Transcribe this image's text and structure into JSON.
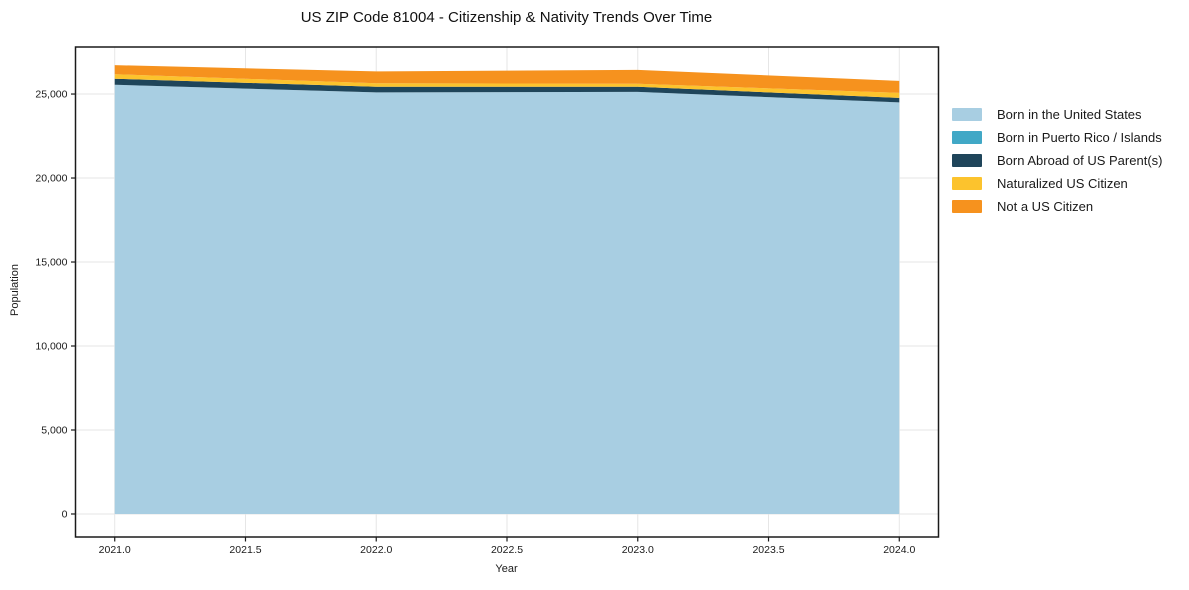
{
  "chart_data": {
    "type": "area",
    "stacked": true,
    "title": "US ZIP Code 81004 - Citizenship & Nativity Trends Over Time",
    "xlabel": "Year",
    "ylabel": "Population",
    "x": [
      2021,
      2022,
      2023,
      2024
    ],
    "series": [
      {
        "name": "Born in the United States",
        "color": "#A8CEE2",
        "values": [
          25550,
          25100,
          25130,
          24500
        ]
      },
      {
        "name": "Born in Puerto Rico / Islands",
        "color": "#41A8C6",
        "values": [
          0,
          0,
          0,
          0
        ]
      },
      {
        "name": "Born Abroad of US Parent(s)",
        "color": "#1F455A",
        "values": [
          360,
          330,
          300,
          270
        ]
      },
      {
        "name": "Naturalized US Citizen",
        "color": "#FCC32D",
        "values": [
          270,
          210,
          180,
          300
        ]
      },
      {
        "name": "Not a US Citizen",
        "color": "#F6921E",
        "values": [
          540,
          710,
          830,
          710
        ]
      }
    ],
    "x_ticks": [
      "2021.0",
      "2021.5",
      "2022.0",
      "2022.5",
      "2023.0",
      "2023.5",
      "2024.0"
    ],
    "y_ticks": [
      "0",
      "5,000",
      "10,000",
      "15,000",
      "20,000",
      "25,000"
    ],
    "xlim": [
      2020.85,
      2024.15
    ],
    "ylim": [
      -1370,
      27800
    ],
    "grid": true,
    "legend_position": "right-of-plot"
  },
  "colors": {
    "background": "#FFFFFF",
    "grid": "#E6E6E6",
    "spine": "#1A1A1A",
    "text": "#1A1A1A"
  }
}
